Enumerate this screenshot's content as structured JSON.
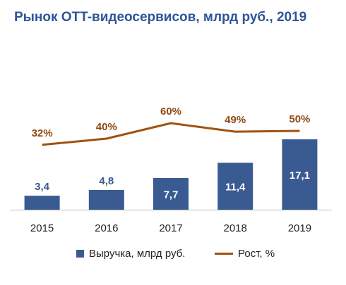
{
  "title": "Рынок OTT-видеосервисов, млрд руб., 2019",
  "colors": {
    "title": "#2e5597",
    "bar": "#3a5a92",
    "line": "#a0520f",
    "growth_label": "#8e4b12",
    "axis": "#bfbfbf",
    "bar_label_inside": "#ffffff",
    "bar_label_outside": "#3a5a92"
  },
  "legend": {
    "bar_label": "Выручка, млрд руб.",
    "line_label": "Рост, %"
  },
  "chart_data": {
    "type": "bar",
    "categories": [
      "2015",
      "2016",
      "2017",
      "2018",
      "2019"
    ],
    "series": [
      {
        "name": "Выручка, млрд руб.",
        "type": "bar",
        "values": [
          3.4,
          4.8,
          7.7,
          11.4,
          17.1
        ],
        "labels": [
          "3,4",
          "4,8",
          "7,7",
          "11,4",
          "17,1"
        ]
      },
      {
        "name": "Рост, %",
        "type": "line",
        "values": [
          32,
          40,
          60,
          49,
          50
        ],
        "labels": [
          "32%",
          "40%",
          "60%",
          "49%",
          "50%"
        ]
      }
    ],
    "title": "Рынок OTT-видеосервисов, млрд руб., 2019",
    "xlabel": "",
    "ylabel": "",
    "grid": false,
    "legend_position": "bottom"
  }
}
